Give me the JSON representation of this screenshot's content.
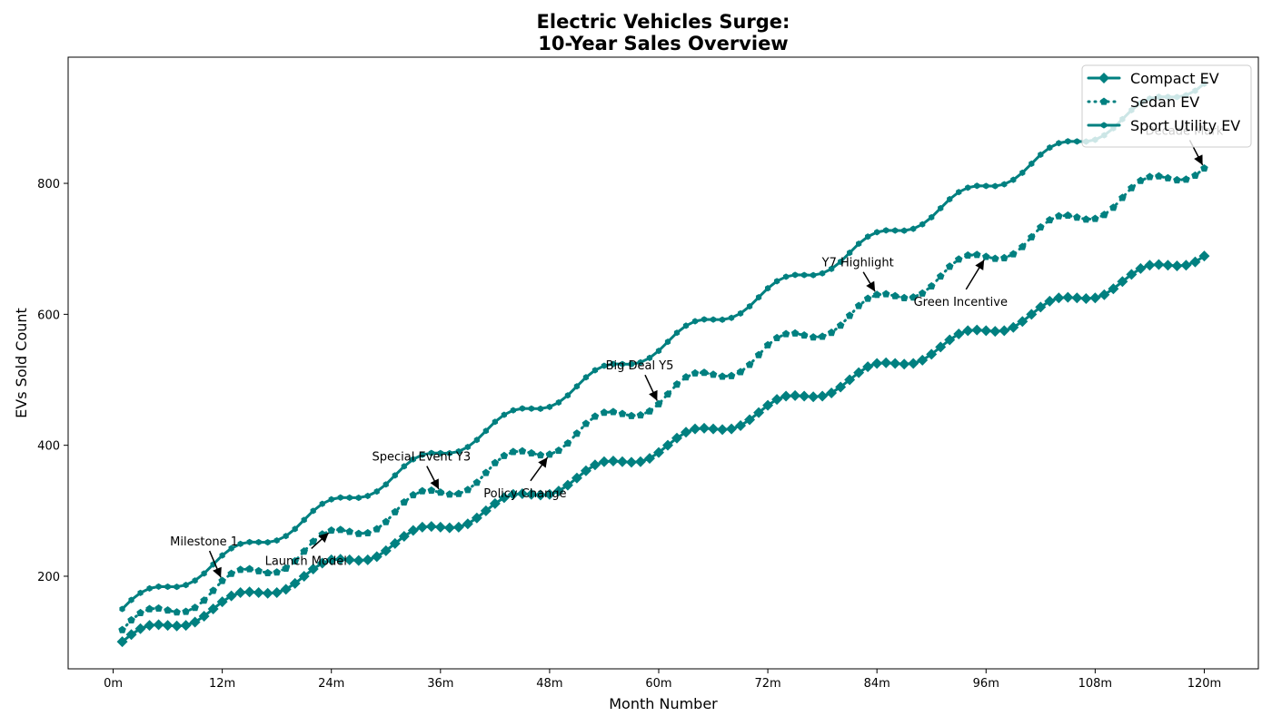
{
  "chart_data": {
    "type": "line",
    "title": "Electric Vehicles Surge:\n10-Year Sales Overview",
    "x_label": "Month Number",
    "y_label": "EVs Sold Count",
    "xlim": [
      -4.95,
      125.95
    ],
    "ylim": [
      58.6,
      992.7
    ],
    "xticks": [
      {
        "value": 0,
        "label": "0m"
      },
      {
        "value": 12,
        "label": "12m"
      },
      {
        "value": 24,
        "label": "24m"
      },
      {
        "value": 36,
        "label": "36m"
      },
      {
        "value": 48,
        "label": "48m"
      },
      {
        "value": 60,
        "label": "60m"
      },
      {
        "value": 72,
        "label": "72m"
      },
      {
        "value": 84,
        "label": "84m"
      },
      {
        "value": 96,
        "label": "96m"
      },
      {
        "value": 108,
        "label": "108m"
      },
      {
        "value": 120,
        "label": "120m"
      }
    ],
    "yticks": [
      200,
      400,
      600,
      800
    ],
    "grid": false,
    "legend": "upper right",
    "x": [
      1,
      2,
      3,
      4,
      5,
      6,
      7,
      8,
      9,
      10,
      11,
      12,
      13,
      14,
      15,
      16,
      17,
      18,
      19,
      20,
      21,
      22,
      23,
      24,
      25,
      26,
      27,
      28,
      29,
      30,
      31,
      32,
      33,
      34,
      35,
      36,
      37,
      38,
      39,
      40,
      41,
      42,
      43,
      44,
      45,
      46,
      47,
      48,
      49,
      50,
      51,
      52,
      53,
      54,
      55,
      56,
      57,
      58,
      59,
      60,
      61,
      62,
      63,
      64,
      65,
      66,
      67,
      68,
      69,
      70,
      71,
      72,
      73,
      74,
      75,
      76,
      77,
      78,
      79,
      80,
      81,
      82,
      83,
      84,
      85,
      86,
      87,
      88,
      89,
      90,
      91,
      92,
      93,
      94,
      95,
      96,
      97,
      98,
      99,
      100,
      101,
      102,
      103,
      104,
      105,
      106,
      107,
      108,
      109,
      110,
      111,
      112,
      113,
      114,
      115,
      116,
      117,
      118,
      119,
      120
    ],
    "series": [
      {
        "name": "Compact EV",
        "color": "#008080",
        "linestyle": "solid",
        "marker": "diamond",
        "values": [
          100,
          111,
          120,
          125,
          126,
          125,
          124,
          125,
          130,
          139,
          150,
          161,
          170,
          175,
          176,
          175,
          174,
          175,
          180,
          189,
          200,
          211,
          220,
          225,
          226,
          225,
          224,
          225,
          230,
          239,
          250,
          261,
          270,
          275,
          276,
          275,
          274,
          275,
          280,
          289,
          300,
          311,
          320,
          325,
          326,
          325,
          324,
          325,
          330,
          339,
          350,
          361,
          370,
          375,
          376,
          375,
          374,
          375,
          380,
          389,
          400,
          411,
          420,
          425,
          426,
          425,
          424,
          425,
          430,
          439,
          450,
          461,
          470,
          475,
          476,
          475,
          474,
          475,
          480,
          489,
          500,
          511,
          520,
          525,
          526,
          525,
          524,
          525,
          530,
          539,
          550,
          561,
          570,
          575,
          576,
          575,
          574,
          575,
          580,
          589,
          600,
          611,
          620,
          625,
          626,
          625,
          624,
          625,
          630,
          639,
          650,
          661,
          670,
          675,
          676,
          675,
          674,
          675,
          680,
          689
        ]
      },
      {
        "name": "Sedan EV",
        "color": "#008080",
        "linestyle": "dotted",
        "marker": "pentagon",
        "values": [
          118,
          133,
          144,
          150,
          151,
          148,
          145,
          146,
          152,
          163,
          178,
          193,
          204,
          210,
          211,
          208,
          205,
          206,
          212,
          223,
          238,
          253,
          264,
          270,
          271,
          268,
          265,
          266,
          272,
          283,
          298,
          313,
          324,
          330,
          331,
          328,
          325,
          326,
          332,
          343,
          358,
          373,
          384,
          390,
          391,
          388,
          385,
          386,
          392,
          403,
          418,
          433,
          444,
          450,
          451,
          448,
          445,
          446,
          452,
          463,
          478,
          493,
          504,
          510,
          511,
          508,
          505,
          506,
          512,
          523,
          538,
          553,
          564,
          570,
          571,
          568,
          565,
          566,
          572,
          583,
          598,
          613,
          624,
          630,
          631,
          628,
          625,
          626,
          632,
          643,
          658,
          673,
          684,
          690,
          691,
          688,
          685,
          686,
          692,
          703,
          718,
          733,
          744,
          750,
          751,
          748,
          745,
          746,
          752,
          763,
          778,
          793,
          804,
          810,
          811,
          808,
          805,
          806,
          812,
          823
        ]
      },
      {
        "name": "Sport Utility EV",
        "color": "#008080",
        "linestyle": "solid",
        "marker": "hexagon",
        "values": [
          150,
          163.8,
          174.6,
          181.4,
          184.2,
          184,
          183.8,
          186.6,
          193.4,
          204.2,
          218,
          231.8,
          242.6,
          249.4,
          252.2,
          252,
          251.8,
          254.6,
          261.4,
          272.2,
          286,
          299.8,
          310.6,
          317.4,
          320.2,
          320,
          319.8,
          322.6,
          329.4,
          340.2,
          354,
          367.8,
          378.6,
          385.4,
          388.2,
          388,
          387.8,
          390.6,
          397.4,
          408.2,
          422,
          435.8,
          446.6,
          453.4,
          456.2,
          456,
          455.8,
          458.6,
          465.4,
          476.2,
          490,
          503.8,
          514.6,
          521.4,
          524.2,
          524,
          523.8,
          526.6,
          533.4,
          544.2,
          558,
          571.8,
          582.6,
          589.4,
          592.2,
          592,
          591.8,
          594.6,
          601.4,
          612.2,
          626,
          639.8,
          650.6,
          657.4,
          660.2,
          660,
          659.8,
          662.6,
          669.4,
          680.2,
          694,
          707.8,
          718.6,
          725.4,
          728.2,
          728,
          727.8,
          730.6,
          737.4,
          748.2,
          762,
          775.8,
          786.6,
          793.4,
          796.2,
          796,
          795.8,
          798.6,
          805.4,
          816.2,
          830,
          843.8,
          854.6,
          861.4,
          864.2,
          864,
          863.8,
          866.6,
          873.4,
          884.2,
          898,
          911.8,
          922.6,
          929.4,
          932.2,
          932,
          931.8,
          934.6,
          941.4,
          952.2
        ]
      }
    ],
    "annotations": [
      {
        "text": "Milestone 1",
        "x": 12,
        "y": 193
      },
      {
        "text": "Launch Model",
        "x": 24,
        "y": 270
      },
      {
        "text": "Special Event Y3",
        "x": 36,
        "y": 328
      },
      {
        "text": "Policy Change",
        "x": 48,
        "y": 386
      },
      {
        "text": "Big Deal Y5",
        "x": 60,
        "y": 463
      },
      {
        "text": "Y7 Highlight",
        "x": 84,
        "y": 630
      },
      {
        "text": "Green Incentive",
        "x": 96,
        "y": 688
      },
      {
        "text": "Decade Mark",
        "x": 120,
        "y": 823
      }
    ]
  }
}
